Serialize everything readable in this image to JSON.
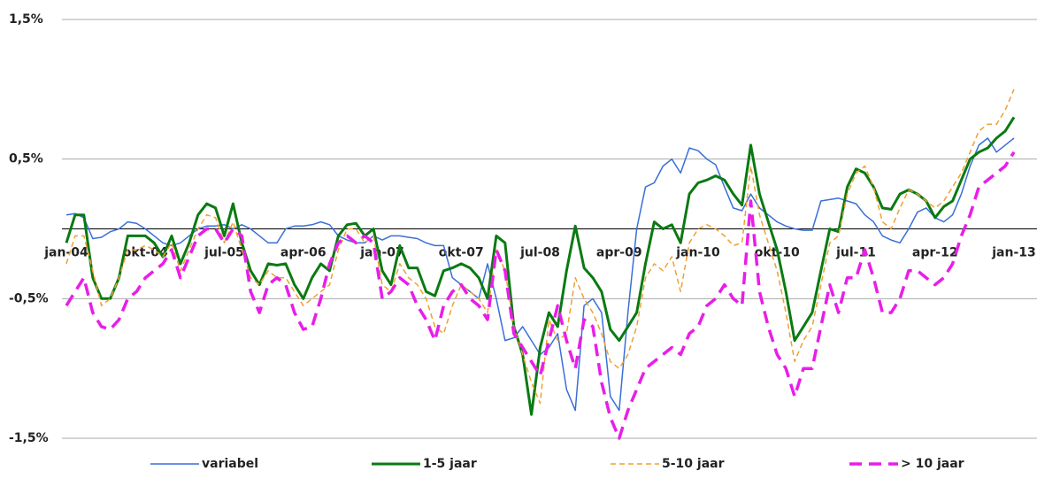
{
  "chart_data": {
    "type": "line",
    "categories": [
      "jan-04",
      null,
      null,
      null,
      null,
      null,
      null,
      null,
      null,
      "okt-04",
      null,
      null,
      null,
      null,
      null,
      null,
      null,
      null,
      "jul-05",
      null,
      null,
      null,
      null,
      null,
      null,
      null,
      null,
      "apr-06",
      null,
      null,
      null,
      null,
      null,
      null,
      null,
      null,
      "jan-07",
      null,
      null,
      null,
      null,
      null,
      null,
      null,
      null,
      "okt-07",
      null,
      null,
      null,
      null,
      null,
      null,
      null,
      null,
      "jul-08",
      null,
      null,
      null,
      null,
      null,
      null,
      null,
      null,
      "apr-09",
      null,
      null,
      null,
      null,
      null,
      null,
      null,
      null,
      "jan-10",
      null,
      null,
      null,
      null,
      null,
      null,
      null,
      null,
      "okt-10",
      null,
      null,
      null,
      null,
      null,
      null,
      null,
      null,
      "jul-11",
      null,
      null,
      null,
      null,
      null,
      null,
      null,
      null,
      "apr-12",
      null,
      null,
      null,
      null,
      null,
      null,
      null,
      null,
      "jan-13"
    ],
    "series": [
      {
        "name": "variabel",
        "color": "#3a6fd8",
        "width": 1.5,
        "dash": "solid",
        "values": [
          0.1,
          0.11,
          0.08,
          -0.07,
          -0.06,
          -0.02,
          0,
          0.05,
          0.04,
          0,
          -0.05,
          -0.1,
          -0.12,
          -0.1,
          -0.05,
          0,
          0.02,
          0.02,
          0.03,
          0,
          0.03,
          0,
          -0.05,
          -0.1,
          -0.1,
          0,
          0.02,
          0.02,
          0.03,
          0.05,
          0.03,
          -0.05,
          -0.08,
          -0.1,
          -0.1,
          -0.05,
          -0.08,
          -0.05,
          -0.05,
          -0.06,
          -0.07,
          -0.1,
          -0.12,
          -0.12,
          -0.35,
          -0.4,
          -0.45,
          -0.5,
          -0.25,
          -0.5,
          -0.8,
          -0.78,
          -0.7,
          -0.8,
          -0.9,
          -0.85,
          -0.75,
          -1.15,
          -1.3,
          -0.55,
          -0.5,
          -0.6,
          -1.2,
          -1.3,
          -0.6,
          0,
          0.3,
          0.33,
          0.45,
          0.5,
          0.4,
          0.58,
          0.56,
          0.5,
          0.46,
          0.3,
          0.15,
          0.13,
          0.25,
          0.15,
          0.1,
          0.05,
          0.02,
          0,
          -0.01,
          -0.01,
          0.2,
          0.21,
          0.22,
          0.2,
          0.18,
          0.1,
          0.05,
          -0.05,
          -0.08,
          -0.1,
          0,
          0.12,
          0.15,
          0.08,
          0.05,
          0.1,
          0.25,
          0.45,
          0.6,
          0.65,
          0.55,
          0.6,
          0.65
        ]
      },
      {
        "name": "1-5 jaar",
        "color": "#0a7a12",
        "width": 3,
        "dash": "solid",
        "values": [
          -0.1,
          0.1,
          0.1,
          -0.35,
          -0.5,
          -0.5,
          -0.35,
          -0.05,
          -0.05,
          -0.05,
          -0.1,
          -0.2,
          -0.05,
          -0.25,
          -0.1,
          0.1,
          0.18,
          0.15,
          -0.05,
          0.18,
          -0.1,
          -0.3,
          -0.4,
          -0.25,
          -0.26,
          -0.25,
          -0.4,
          -0.5,
          -0.35,
          -0.25,
          -0.3,
          -0.05,
          0.03,
          0.04,
          -0.05,
          0,
          -0.3,
          -0.4,
          -0.12,
          -0.28,
          -0.28,
          -0.45,
          -0.48,
          -0.3,
          -0.28,
          -0.25,
          -0.28,
          -0.35,
          -0.5,
          -0.05,
          -0.1,
          -0.7,
          -0.9,
          -1.33,
          -0.85,
          -0.6,
          -0.7,
          -0.3,
          0.02,
          -0.28,
          -0.35,
          -0.45,
          -0.72,
          -0.8,
          -0.7,
          -0.6,
          -0.25,
          0.05,
          0,
          0.03,
          -0.1,
          0.25,
          0.33,
          0.35,
          0.38,
          0.35,
          0.25,
          0.17,
          0.6,
          0.25,
          0.05,
          -0.15,
          -0.45,
          -0.8,
          -0.7,
          -0.6,
          -0.3,
          0,
          -0.02,
          0.3,
          0.43,
          0.4,
          0.3,
          0.15,
          0.14,
          0.25,
          0.28,
          0.25,
          0.2,
          0.08,
          0.16,
          0.2,
          0.35,
          0.5,
          0.55,
          0.58,
          0.65,
          0.7,
          0.8
        ]
      },
      {
        "name": "5-10 jaar",
        "color": "#f0a030",
        "width": 1.5,
        "dash": "6 4",
        "values": [
          -0.25,
          -0.05,
          -0.05,
          -0.3,
          -0.55,
          -0.5,
          -0.35,
          -0.15,
          -0.15,
          -0.12,
          -0.15,
          -0.2,
          -0.1,
          -0.3,
          -0.15,
          0,
          0.1,
          0.08,
          -0.1,
          0.05,
          -0.15,
          -0.35,
          -0.4,
          -0.3,
          -0.35,
          -0.35,
          -0.45,
          -0.55,
          -0.5,
          -0.45,
          -0.4,
          -0.15,
          0,
          0,
          -0.1,
          -0.05,
          -0.4,
          -0.45,
          -0.25,
          -0.35,
          -0.4,
          -0.5,
          -0.7,
          -0.75,
          -0.55,
          -0.4,
          -0.45,
          -0.5,
          -0.6,
          -0.15,
          -0.3,
          -0.7,
          -0.9,
          -1.1,
          -1.25,
          -0.65,
          -0.8,
          -0.75,
          -0.35,
          -0.5,
          -0.6,
          -0.75,
          -0.95,
          -1,
          -0.9,
          -0.7,
          -0.35,
          -0.25,
          -0.3,
          -0.2,
          -0.45,
          -0.1,
          0,
          0.03,
          0,
          -0.05,
          -0.12,
          -0.1,
          0.45,
          0.1,
          -0.1,
          -0.3,
          -0.6,
          -0.95,
          -0.8,
          -0.7,
          -0.4,
          -0.1,
          -0.05,
          0.25,
          0.4,
          0.45,
          0.3,
          0.05,
          0,
          0.15,
          0.28,
          0.25,
          0.2,
          0.15,
          0.2,
          0.3,
          0.4,
          0.55,
          0.7,
          0.75,
          0.75,
          0.85,
          1
        ]
      },
      {
        "name": "> 10 jaar",
        "color": "#e81ee8",
        "width": 3.5,
        "dash": "14 8",
        "values": [
          -0.55,
          -0.45,
          -0.35,
          -0.6,
          -0.7,
          -0.72,
          -0.65,
          -0.5,
          -0.45,
          -0.35,
          -0.3,
          -0.25,
          -0.15,
          -0.35,
          -0.2,
          -0.05,
          0,
          0,
          -0.1,
          0,
          -0.05,
          -0.45,
          -0.6,
          -0.4,
          -0.35,
          -0.4,
          -0.6,
          -0.72,
          -0.7,
          -0.5,
          -0.25,
          -0.1,
          -0.05,
          -0.1,
          -0.05,
          -0.1,
          -0.5,
          -0.45,
          -0.35,
          -0.4,
          -0.55,
          -0.65,
          -0.8,
          -0.55,
          -0.45,
          -0.4,
          -0.5,
          -0.55,
          -0.65,
          -0.15,
          -0.3,
          -0.75,
          -0.85,
          -0.95,
          -1.05,
          -0.8,
          -0.55,
          -0.8,
          -1,
          -0.65,
          -0.7,
          -1.1,
          -1.35,
          -1.5,
          -1.3,
          -1.15,
          -1,
          -0.95,
          -0.9,
          -0.85,
          -0.9,
          -0.75,
          -0.7,
          -0.55,
          -0.5,
          -0.4,
          -0.5,
          -0.55,
          0.2,
          -0.45,
          -0.7,
          -0.9,
          -1,
          -1.2,
          -1,
          -1,
          -0.7,
          -0.4,
          -0.6,
          -0.35,
          -0.35,
          -0.15,
          -0.35,
          -0.6,
          -0.6,
          -0.5,
          -0.3,
          -0.3,
          -0.35,
          -0.4,
          -0.35,
          -0.25,
          -0.05,
          0.1,
          0.3,
          0.35,
          0.4,
          0.45,
          0.55
        ]
      }
    ],
    "ylim": [
      -1.5,
      1.5
    ],
    "yticks": [
      {
        "value": -1.5,
        "label": "-1,5%"
      },
      {
        "value": -0.5,
        "label": "-0,5%"
      },
      {
        "value": 0.5,
        "label": "0,5%"
      },
      {
        "value": 1.5,
        "label": "1,5%"
      }
    ],
    "grid": true,
    "legend": "bottom"
  }
}
